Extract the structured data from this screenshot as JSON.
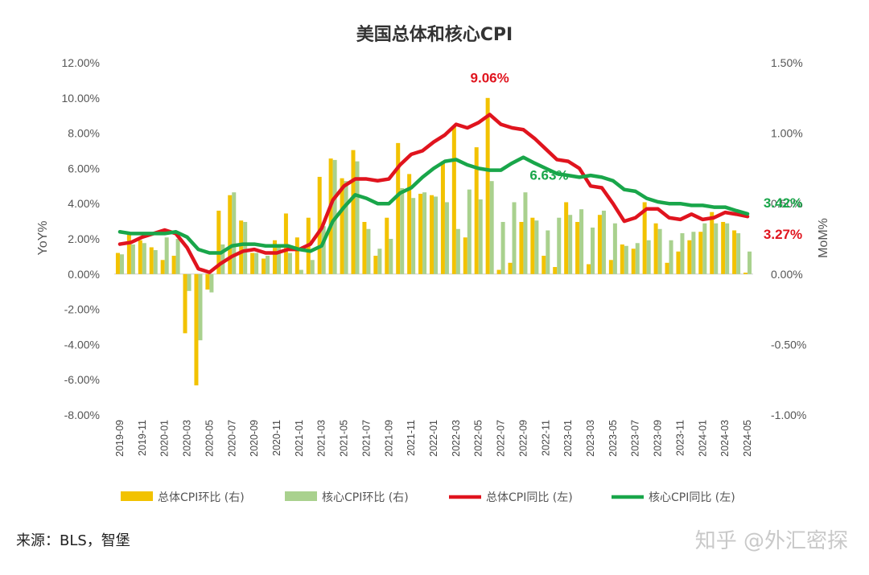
{
  "chart_data": {
    "type": "bar+line",
    "title": "美国总体和核心CPI",
    "ylabel_left": "YoY%",
    "ylabel_right": "MoM%",
    "ylim_left": [
      -8,
      12
    ],
    "ylim_right": [
      -1.0,
      1.5
    ],
    "yticks_left": [
      "12.00%",
      "10.00%",
      "8.00%",
      "6.00%",
      "4.00%",
      "2.00%",
      "0.00%",
      "-2.00%",
      "-4.00%",
      "-6.00%",
      "-8.00%"
    ],
    "yticks_right": [
      "1.50%",
      "1.00%",
      "0.50%",
      "0.00%",
      "-0.50%",
      "-1.00%"
    ],
    "x": [
      "2019-09",
      "2019-10",
      "2019-11",
      "2019-12",
      "2020-01",
      "2020-02",
      "2020-03",
      "2020-04",
      "2020-05",
      "2020-06",
      "2020-07",
      "2020-08",
      "2020-09",
      "2020-10",
      "2020-11",
      "2020-12",
      "2021-01",
      "2021-02",
      "2021-03",
      "2021-04",
      "2021-05",
      "2021-06",
      "2021-07",
      "2021-08",
      "2021-09",
      "2021-10",
      "2021-11",
      "2021-12",
      "2022-01",
      "2022-02",
      "2022-03",
      "2022-04",
      "2022-05",
      "2022-06",
      "2022-07",
      "2022-08",
      "2022-09",
      "2022-10",
      "2022-11",
      "2022-12",
      "2023-01",
      "2023-02",
      "2023-03",
      "2023-04",
      "2023-05",
      "2023-06",
      "2023-07",
      "2023-08",
      "2023-09",
      "2023-10",
      "2023-11",
      "2023-12",
      "2024-01",
      "2024-02",
      "2024-03",
      "2024-04",
      "2024-05"
    ],
    "xtick_labels": [
      "2019-09",
      "2019-11",
      "2020-01",
      "2020-03",
      "2020-05",
      "2020-07",
      "2020-09",
      "2020-11",
      "2021-01",
      "2021-03",
      "2021-05",
      "2021-07",
      "2021-09",
      "2021-11",
      "2022-01",
      "2022-03",
      "2022-05",
      "2022-07",
      "2022-09",
      "2022-11",
      "2023-01",
      "2023-03",
      "2023-05",
      "2023-07",
      "2023-09",
      "2023-11",
      "2024-01",
      "2024-03",
      "2024-05"
    ],
    "series": [
      {
        "name": "总体CPI环比 (右)",
        "kind": "bar",
        "axis": "right",
        "color": "#F2C200",
        "values": [
          0.15,
          0.28,
          0.24,
          0.19,
          0.1,
          0.13,
          -0.42,
          -0.79,
          -0.11,
          0.45,
          0.56,
          0.38,
          0.15,
          0.11,
          0.24,
          0.43,
          0.26,
          0.4,
          0.69,
          0.82,
          0.68,
          0.88,
          0.37,
          0.13,
          0.4,
          0.93,
          0.71,
          0.57,
          0.56,
          0.8,
          1.05,
          0.26,
          0.9,
          1.25,
          0.03,
          0.08,
          0.37,
          0.4,
          0.13,
          0.05,
          0.51,
          0.37,
          0.07,
          0.42,
          0.1,
          0.21,
          0.18,
          0.51,
          0.36,
          0.08,
          0.16,
          0.24,
          0.3,
          0.44,
          0.37,
          0.31,
          0.01
        ]
      },
      {
        "name": "核心CPI环比 (右)",
        "kind": "bar",
        "axis": "right",
        "color": "#A9D18E",
        "values": [
          0.14,
          0.21,
          0.22,
          0.17,
          0.26,
          0.25,
          -0.12,
          -0.47,
          -0.13,
          0.21,
          0.58,
          0.37,
          0.15,
          0.13,
          0.2,
          0.15,
          0.03,
          0.1,
          0.34,
          0.81,
          0.66,
          0.8,
          0.32,
          0.18,
          0.25,
          0.61,
          0.54,
          0.58,
          0.55,
          0.51,
          0.32,
          0.6,
          0.53,
          0.66,
          0.37,
          0.51,
          0.58,
          0.38,
          0.31,
          0.4,
          0.42,
          0.46,
          0.33,
          0.45,
          0.36,
          0.2,
          0.22,
          0.24,
          0.32,
          0.24,
          0.29,
          0.3,
          0.36,
          0.36,
          0.36,
          0.29,
          0.16
        ]
      },
      {
        "name": "总体CPI同比 (左)",
        "kind": "line",
        "axis": "left",
        "color": "#E0141E",
        "values": [
          1.7,
          1.8,
          2.1,
          2.3,
          2.5,
          2.3,
          1.5,
          0.3,
          0.1,
          0.6,
          1.0,
          1.3,
          1.4,
          1.2,
          1.2,
          1.4,
          1.4,
          1.7,
          2.6,
          4.2,
          5.0,
          5.4,
          5.4,
          5.3,
          5.4,
          6.2,
          6.8,
          7.0,
          7.5,
          7.9,
          8.5,
          8.3,
          8.6,
          9.06,
          8.5,
          8.3,
          8.2,
          7.7,
          7.1,
          6.5,
          6.4,
          6.0,
          5.0,
          4.9,
          4.0,
          3.0,
          3.2,
          3.7,
          3.7,
          3.2,
          3.1,
          3.4,
          3.1,
          3.2,
          3.5,
          3.4,
          3.27
        ]
      },
      {
        "name": "核心CPI同比 (左)",
        "kind": "line",
        "axis": "left",
        "color": "#19A64A",
        "values": [
          2.4,
          2.3,
          2.3,
          2.3,
          2.3,
          2.4,
          2.1,
          1.4,
          1.2,
          1.2,
          1.6,
          1.7,
          1.7,
          1.6,
          1.6,
          1.6,
          1.4,
          1.3,
          1.6,
          3.0,
          3.8,
          4.5,
          4.3,
          4.0,
          4.0,
          4.6,
          4.9,
          5.5,
          6.0,
          6.4,
          6.5,
          6.2,
          6.0,
          5.9,
          5.9,
          6.3,
          6.63,
          6.3,
          6.0,
          5.7,
          5.6,
          5.5,
          5.6,
          5.5,
          5.3,
          4.8,
          4.7,
          4.3,
          4.1,
          4.0,
          4.0,
          3.9,
          3.9,
          3.8,
          3.8,
          3.6,
          3.42
        ]
      }
    ],
    "annotations": [
      {
        "text": "9.06%",
        "series": "总体CPI同比 (左)",
        "x": "2022-06",
        "color": "#E0141E"
      },
      {
        "text": "6.63%",
        "series": "核心CPI同比 (左)",
        "x": "2022-09",
        "color": "#19A64A"
      },
      {
        "text": "3.42%",
        "series": "核心CPI同比 (左)",
        "x": "2024-05",
        "color": "#19A64A"
      },
      {
        "text": "3.27%",
        "series": "总体CPI同比 (左)",
        "x": "2024-05",
        "color": "#E0141E"
      }
    ],
    "legend_position": "bottom"
  },
  "footer": {
    "source": "来源：BLS，智堡",
    "watermark": "知乎 @外汇密探"
  }
}
